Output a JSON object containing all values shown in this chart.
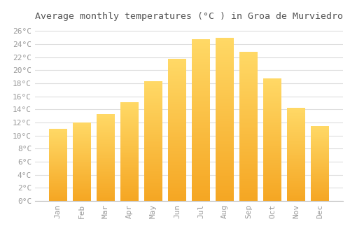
{
  "title": "Average monthly temperatures (°C ) in Groa de Murviedro",
  "months": [
    "Jan",
    "Feb",
    "Mar",
    "Apr",
    "May",
    "Jun",
    "Jul",
    "Aug",
    "Sep",
    "Oct",
    "Nov",
    "Dec"
  ],
  "values": [
    11.0,
    12.0,
    13.3,
    15.1,
    18.3,
    21.7,
    24.7,
    25.0,
    22.8,
    18.7,
    14.2,
    11.5
  ],
  "bar_color_bottom": "#F5A623",
  "bar_color_top": "#FFD966",
  "background_color": "#FFFFFF",
  "grid_color": "#DDDDDD",
  "ylim": [
    0,
    27
  ],
  "ytick_step": 2,
  "title_fontsize": 9.5,
  "tick_fontsize": 8,
  "font_family": "monospace",
  "tick_color": "#999999",
  "title_color": "#555555"
}
